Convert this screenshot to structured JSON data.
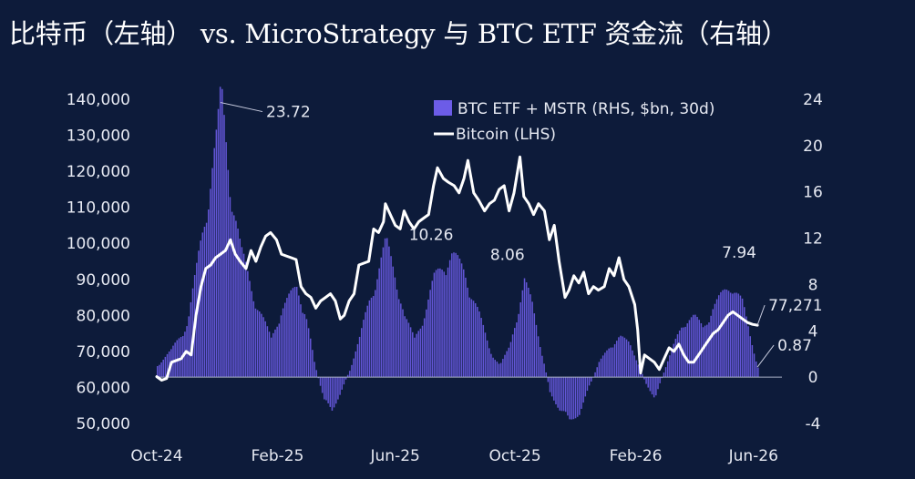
{
  "page": {
    "title": "比特币（左轴） vs. MicroStrategy 与 BTC ETF 资金流（右轴）"
  },
  "colors": {
    "background": "#0d1b3a",
    "bars": "#6c5ce7",
    "line": "#ffffff",
    "text": "#e6e9f2"
  },
  "chart_data": {
    "type": "bar+line",
    "title": "比特币（左轴） vs. MicroStrategy 与 BTC ETF 资金流（右轴）",
    "x_tick_labels": [
      "Oct-24",
      "Feb-25",
      "Jun-25",
      "Oct-25",
      "Feb-26",
      "Jun-26"
    ],
    "x_ticks": [
      "2024-10-01",
      "2025-02-01",
      "2025-06-01",
      "2025-10-01",
      "2026-02-01",
      "2026-06-01"
    ],
    "x_range": [
      "2024-10-01",
      "2026-06-30"
    ],
    "y_left": {
      "label": "",
      "ylim": [
        50000,
        140000
      ],
      "ticks": [
        50000,
        60000,
        70000,
        80000,
        90000,
        100000,
        110000,
        120000,
        130000,
        140000
      ],
      "tick_labels": [
        "50,000",
        "60,000",
        "70,000",
        "80,000",
        "90,000",
        "100,000",
        "110,000",
        "120,000",
        "130,000",
        "140,000"
      ]
    },
    "y_right": {
      "label": "",
      "ylim": [
        -4,
        24
      ],
      "ticks": [
        -4,
        0,
        4,
        8,
        12,
        16,
        20,
        24
      ],
      "tick_labels": [
        "-4",
        "0",
        "4",
        "8",
        "12",
        "16",
        "20",
        "24"
      ]
    },
    "legend": {
      "placement": "top-center",
      "entries": [
        "BTC ETF + MSTR (RHS, $bn, 30d)",
        "Bitcoin (LHS)"
      ]
    },
    "grid": false,
    "series": [
      {
        "name": "BTC ETF + MSTR (RHS, $bn, 30d)",
        "type": "bar",
        "axis": "right",
        "points": [
          [
            "2024-10-01",
            1.0
          ],
          [
            "2024-10-15",
            2.2
          ],
          [
            "2024-11-01",
            4.6
          ],
          [
            "2024-11-10",
            9.0
          ],
          [
            "2024-11-20",
            14.5
          ],
          [
            "2024-12-01",
            20.2
          ],
          [
            "2024-12-05",
            23.72
          ],
          [
            "2024-12-15",
            16.0
          ],
          [
            "2024-12-25",
            10.5
          ],
          [
            "2025-01-10",
            6.2
          ],
          [
            "2025-01-25",
            3.2
          ],
          [
            "2025-02-05",
            5.8
          ],
          [
            "2025-02-20",
            7.5
          ],
          [
            "2025-03-01",
            5.5
          ],
          [
            "2025-03-10",
            1.2
          ],
          [
            "2025-03-20",
            -2.0
          ],
          [
            "2025-03-28",
            -2.8
          ],
          [
            "2025-04-05",
            -1.4
          ],
          [
            "2025-04-15",
            0.6
          ],
          [
            "2025-04-25",
            3.2
          ],
          [
            "2025-05-05",
            6.5
          ],
          [
            "2025-05-15",
            9.2
          ],
          [
            "2025-05-22",
            11.2
          ],
          [
            "2025-06-01",
            8.5
          ],
          [
            "2025-06-10",
            5.0
          ],
          [
            "2025-06-20",
            3.2
          ],
          [
            "2025-07-01",
            5.5
          ],
          [
            "2025-07-10",
            8.2
          ],
          [
            "2025-07-20",
            9.6
          ],
          [
            "2025-07-28",
            10.26
          ],
          [
            "2025-08-10",
            8.8
          ],
          [
            "2025-08-25",
            5.2
          ],
          [
            "2025-09-05",
            2.2
          ],
          [
            "2025-09-15",
            1.0
          ],
          [
            "2025-09-25",
            2.5
          ],
          [
            "2025-10-03",
            5.5
          ],
          [
            "2025-10-10",
            8.06
          ],
          [
            "2025-10-18",
            6.0
          ],
          [
            "2025-10-28",
            2.0
          ],
          [
            "2025-11-05",
            -1.2
          ],
          [
            "2025-11-15",
            -2.8
          ],
          [
            "2025-11-25",
            -3.6
          ],
          [
            "2025-12-05",
            -3.0
          ],
          [
            "2025-12-15",
            -0.8
          ],
          [
            "2025-12-25",
            1.2
          ],
          [
            "2026-01-05",
            2.6
          ],
          [
            "2026-01-15",
            3.4
          ],
          [
            "2026-01-25",
            2.8
          ],
          [
            "2026-02-01",
            1.6
          ],
          [
            "2026-02-10",
            -0.4
          ],
          [
            "2026-02-20",
            -1.8
          ],
          [
            "2026-03-01",
            0.4
          ],
          [
            "2026-03-10",
            2.4
          ],
          [
            "2026-03-20",
            4.6
          ],
          [
            "2026-04-01",
            5.0
          ],
          [
            "2026-04-10",
            4.2
          ],
          [
            "2026-04-20",
            5.8
          ],
          [
            "2026-05-01",
            7.0
          ],
          [
            "2026-05-10",
            7.94
          ],
          [
            "2026-05-20",
            6.2
          ],
          [
            "2026-05-28",
            3.4
          ],
          [
            "2026-06-05",
            0.87
          ]
        ]
      },
      {
        "name": "Bitcoin (LHS)",
        "type": "line",
        "axis": "left",
        "points": [
          [
            "2024-10-01",
            63000
          ],
          [
            "2024-10-06",
            62000
          ],
          [
            "2024-10-11",
            62500
          ],
          [
            "2024-10-16",
            67000
          ],
          [
            "2024-10-21",
            67500
          ],
          [
            "2024-10-26",
            68000
          ],
          [
            "2024-10-31",
            70000
          ],
          [
            "2024-11-05",
            69000
          ],
          [
            "2024-11-10",
            80000
          ],
          [
            "2024-11-15",
            88000
          ],
          [
            "2024-11-20",
            93000
          ],
          [
            "2024-11-25",
            94000
          ],
          [
            "2024-11-30",
            96000
          ],
          [
            "2024-12-05",
            97000
          ],
          [
            "2024-12-10",
            98000
          ],
          [
            "2024-12-15",
            101000
          ],
          [
            "2024-12-20",
            97000
          ],
          [
            "2024-12-25",
            95000
          ],
          [
            "2024-12-31",
            93000
          ],
          [
            "2025-01-05",
            98000
          ],
          [
            "2025-01-10",
            95000
          ],
          [
            "2025-01-15",
            99000
          ],
          [
            "2025-01-20",
            102000
          ],
          [
            "2025-01-25",
            103000
          ],
          [
            "2025-01-31",
            101000
          ],
          [
            "2025-02-05",
            97000
          ],
          [
            "2025-02-10",
            96500
          ],
          [
            "2025-02-15",
            96000
          ],
          [
            "2025-02-20",
            95500
          ],
          [
            "2025-02-25",
            88000
          ],
          [
            "2025-03-02",
            86000
          ],
          [
            "2025-03-07",
            85000
          ],
          [
            "2025-03-12",
            82000
          ],
          [
            "2025-03-17",
            84000
          ],
          [
            "2025-03-22",
            85000
          ],
          [
            "2025-03-27",
            86000
          ],
          [
            "2025-04-01",
            84000
          ],
          [
            "2025-04-06",
            79000
          ],
          [
            "2025-04-10",
            80000
          ],
          [
            "2025-04-15",
            84000
          ],
          [
            "2025-04-20",
            86000
          ],
          [
            "2025-04-25",
            94000
          ],
          [
            "2025-04-30",
            94500
          ],
          [
            "2025-05-05",
            95000
          ],
          [
            "2025-05-10",
            104000
          ],
          [
            "2025-05-15",
            103000
          ],
          [
            "2025-05-20",
            106000
          ],
          [
            "2025-05-22",
            111000
          ],
          [
            "2025-05-27",
            108000
          ],
          [
            "2025-06-01",
            105000
          ],
          [
            "2025-06-06",
            104000
          ],
          [
            "2025-06-10",
            109000
          ],
          [
            "2025-06-15",
            106000
          ],
          [
            "2025-06-20",
            104000
          ],
          [
            "2025-06-25",
            106000
          ],
          [
            "2025-06-30",
            107000
          ],
          [
            "2025-07-05",
            108000
          ],
          [
            "2025-07-10",
            116000
          ],
          [
            "2025-07-14",
            121000
          ],
          [
            "2025-07-20",
            118000
          ],
          [
            "2025-07-25",
            117000
          ],
          [
            "2025-07-31",
            116000
          ],
          [
            "2025-08-05",
            114000
          ],
          [
            "2025-08-10",
            118000
          ],
          [
            "2025-08-14",
            123000
          ],
          [
            "2025-08-20",
            114000
          ],
          [
            "2025-08-25",
            112000
          ],
          [
            "2025-08-31",
            109000
          ],
          [
            "2025-09-05",
            111000
          ],
          [
            "2025-09-10",
            112000
          ],
          [
            "2025-09-15",
            115000
          ],
          [
            "2025-09-20",
            116000
          ],
          [
            "2025-09-25",
            109000
          ],
          [
            "2025-09-30",
            114000
          ],
          [
            "2025-10-06",
            124000
          ],
          [
            "2025-10-10",
            113000
          ],
          [
            "2025-10-15",
            111000
          ],
          [
            "2025-10-20",
            108000
          ],
          [
            "2025-10-25",
            111000
          ],
          [
            "2025-10-31",
            109000
          ],
          [
            "2025-11-05",
            101000
          ],
          [
            "2025-11-10",
            105000
          ],
          [
            "2025-11-15",
            95000
          ],
          [
            "2025-11-21",
            85000
          ],
          [
            "2025-11-25",
            87000
          ],
          [
            "2025-11-30",
            91000
          ],
          [
            "2025-12-05",
            89000
          ],
          [
            "2025-12-10",
            92000
          ],
          [
            "2025-12-15",
            86000
          ],
          [
            "2025-12-20",
            88000
          ],
          [
            "2025-12-25",
            87000
          ],
          [
            "2025-12-31",
            88000
          ],
          [
            "2026-01-05",
            93000
          ],
          [
            "2026-01-10",
            91000
          ],
          [
            "2026-01-15",
            96000
          ],
          [
            "2026-01-20",
            90000
          ],
          [
            "2026-01-25",
            88000
          ],
          [
            "2026-01-31",
            83000
          ],
          [
            "2026-02-03",
            76000
          ],
          [
            "2026-02-06",
            64000
          ],
          [
            "2026-02-10",
            69000
          ],
          [
            "2026-02-15",
            68000
          ],
          [
            "2026-02-20",
            67000
          ],
          [
            "2026-02-25",
            65000
          ],
          [
            "2026-03-02",
            68000
          ],
          [
            "2026-03-07",
            71000
          ],
          [
            "2026-03-12",
            70000
          ],
          [
            "2026-03-17",
            72000
          ],
          [
            "2026-03-22",
            69000
          ],
          [
            "2026-03-27",
            67000
          ],
          [
            "2026-04-01",
            67000
          ],
          [
            "2026-04-06",
            69000
          ],
          [
            "2026-04-11",
            71000
          ],
          [
            "2026-04-16",
            73000
          ],
          [
            "2026-04-21",
            75000
          ],
          [
            "2026-04-26",
            76000
          ],
          [
            "2026-05-01",
            78000
          ],
          [
            "2026-05-06",
            80000
          ],
          [
            "2026-05-11",
            81000
          ],
          [
            "2026-05-16",
            80000
          ],
          [
            "2026-05-21",
            79000
          ],
          [
            "2026-05-26",
            78000
          ],
          [
            "2026-05-31",
            77500
          ],
          [
            "2026-06-05",
            77271
          ]
        ]
      }
    ],
    "annotations": [
      {
        "text": "23.72",
        "series": "BTC ETF + MSTR (RHS, $bn, 30d)",
        "x": "2024-12-05",
        "y": 23.72
      },
      {
        "text": "10.26",
        "series": "BTC ETF + MSTR (RHS, $bn, 30d)",
        "x": "2025-07-28",
        "y": 10.26
      },
      {
        "text": "8.06",
        "series": "BTC ETF + MSTR (RHS, $bn, 30d)",
        "x": "2025-10-10",
        "y": 8.06
      },
      {
        "text": "7.94",
        "series": "BTC ETF + MSTR (RHS, $bn, 30d)",
        "x": "2026-05-10",
        "y": 7.94
      },
      {
        "text": "0.87",
        "series": "BTC ETF + MSTR (RHS, $bn, 30d)",
        "x": "2026-06-05",
        "y": 0.87
      },
      {
        "text": "77,271",
        "series": "Bitcoin (LHS)",
        "x": "2026-06-05",
        "y": 77271
      }
    ]
  }
}
